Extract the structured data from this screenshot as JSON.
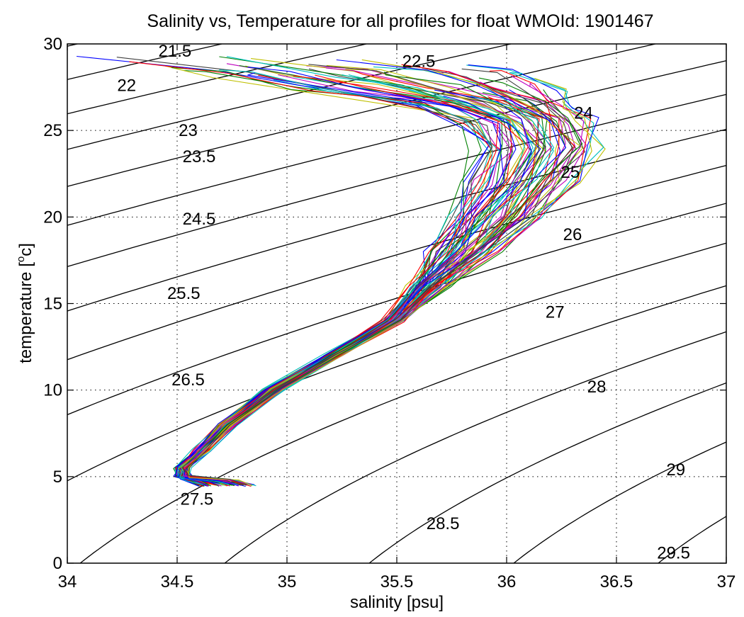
{
  "chart_data": {
    "type": "line",
    "title": "Salinity vs, Temperature for all profiles for float WMOId: 1901467",
    "xlabel": "salinity [psu]",
    "ylabel_main": "temperature [",
    "ylabel_sup": "o",
    "ylabel_end": "c]",
    "xlim": [
      34,
      37
    ],
    "ylim": [
      0,
      30
    ],
    "x_ticks": [
      "34",
      "34.5",
      "35",
      "35.5",
      "36",
      "36.5",
      "37"
    ],
    "y_ticks": [
      "0",
      "5",
      "10",
      "15",
      "20",
      "25",
      "30"
    ],
    "grid": true,
    "density_contours": {
      "levels": [
        21.5,
        22,
        22.5,
        23,
        23.5,
        24,
        24.5,
        25,
        25.5,
        26,
        26.5,
        27,
        27.5,
        28,
        28.5,
        29,
        29.5
      ],
      "labels": [
        {
          "text": "21.5",
          "s": 34.49,
          "t": 29.6
        },
        {
          "text": "22",
          "s": 34.27,
          "t": 27.6
        },
        {
          "text": "22.5",
          "s": 35.6,
          "t": 29.0
        },
        {
          "text": "23",
          "s": 34.55,
          "t": 25.0
        },
        {
          "text": "23.5",
          "s": 34.6,
          "t": 23.5
        },
        {
          "text": "24",
          "s": 36.35,
          "t": 26.0
        },
        {
          "text": "24.5",
          "s": 34.6,
          "t": 19.9
        },
        {
          "text": "25",
          "s": 36.29,
          "t": 22.6
        },
        {
          "text": "25.5",
          "s": 34.53,
          "t": 15.6
        },
        {
          "text": "26",
          "s": 36.3,
          "t": 19.0
        },
        {
          "text": "26.5",
          "s": 34.55,
          "t": 10.6
        },
        {
          "text": "27",
          "s": 36.22,
          "t": 14.5
        },
        {
          "text": "27.5",
          "s": 34.59,
          "t": 3.7
        },
        {
          "text": "28",
          "s": 36.41,
          "t": 10.2
        },
        {
          "text": "28.5",
          "s": 35.71,
          "t": 2.3
        },
        {
          "text": "29",
          "s": 36.77,
          "t": 5.4
        },
        {
          "text": "29.5",
          "s": 36.76,
          "t": 0.6
        }
      ]
    },
    "series_colors": [
      "#0000ff",
      "#008000",
      "#ff0000",
      "#00bfbf",
      "#bf00bf",
      "#bfbf00",
      "#404040"
    ],
    "profiles": {
      "count": 70,
      "envelope": [
        {
          "t": 4.5,
          "s_min": 34.6,
          "s_max": 34.85
        },
        {
          "t": 4.8,
          "s_min": 34.52,
          "s_max": 34.78
        },
        {
          "t": 5.0,
          "s_min": 34.49,
          "s_max": 34.56
        },
        {
          "t": 5.5,
          "s_min": 34.5,
          "s_max": 34.55
        },
        {
          "t": 6.5,
          "s_min": 34.58,
          "s_max": 34.64
        },
        {
          "t": 8.0,
          "s_min": 34.69,
          "s_max": 34.76
        },
        {
          "t": 10.0,
          "s_min": 34.9,
          "s_max": 34.97
        },
        {
          "t": 12.0,
          "s_min": 35.17,
          "s_max": 35.24
        },
        {
          "t": 14.0,
          "s_min": 35.44,
          "s_max": 35.52
        },
        {
          "t": 16.0,
          "s_min": 35.58,
          "s_max": 35.72
        },
        {
          "t": 18.0,
          "s_min": 35.66,
          "s_max": 35.95
        },
        {
          "t": 20.0,
          "s_min": 35.74,
          "s_max": 36.15
        },
        {
          "t": 22.0,
          "s_min": 35.8,
          "s_max": 36.32
        },
        {
          "t": 24.0,
          "s_min": 35.86,
          "s_max": 36.42
        },
        {
          "t": 25.5,
          "s_min": 35.78,
          "s_max": 36.38
        },
        {
          "t": 26.5,
          "s_min": 35.55,
          "s_max": 36.3
        },
        {
          "t": 27.5,
          "s_min": 35.0,
          "s_max": 36.25
        },
        {
          "t": 28.3,
          "s_min": 34.6,
          "s_max": 36.1
        },
        {
          "t": 29.3,
          "s_min": 34.0,
          "s_max": 35.6
        }
      ]
    }
  }
}
